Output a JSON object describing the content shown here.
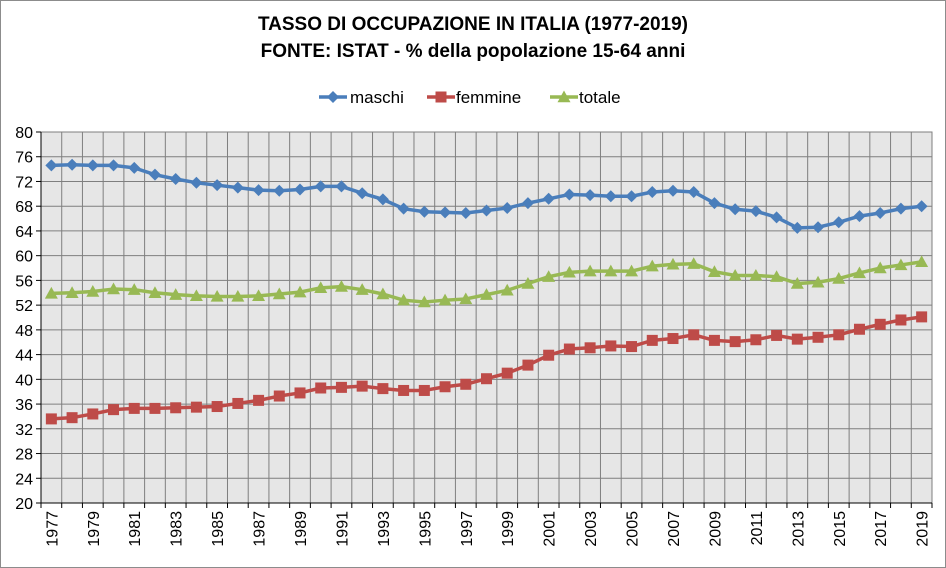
{
  "chart_data": {
    "type": "line",
    "title": "TASSO DI OCCUPAZIONE IN ITALIA (1977-2019)",
    "subtitle": "FONTE: ISTAT - % della popolazione 15-64 anni",
    "xlabel": "",
    "ylabel": "",
    "ylim": [
      20,
      80
    ],
    "yticks": [
      20,
      24,
      28,
      32,
      36,
      40,
      44,
      48,
      52,
      56,
      60,
      64,
      68,
      72,
      76,
      80
    ],
    "x": [
      1977,
      1978,
      1979,
      1980,
      1981,
      1982,
      1983,
      1984,
      1985,
      1986,
      1987,
      1988,
      1989,
      1990,
      1991,
      1992,
      1993,
      1994,
      1995,
      1996,
      1997,
      1998,
      1999,
      2000,
      2001,
      2002,
      2003,
      2004,
      2005,
      2006,
      2007,
      2008,
      2009,
      2010,
      2011,
      2012,
      2013,
      2014,
      2015,
      2016,
      2017,
      2018,
      2019
    ],
    "xtick_labels": [
      "1977",
      "1979",
      "1981",
      "1983",
      "1985",
      "1987",
      "1989",
      "1991",
      "1993",
      "1995",
      "1997",
      "1999",
      "2001",
      "2003",
      "2005",
      "2007",
      "2009",
      "2011",
      "2013",
      "2015",
      "2017",
      "2019"
    ],
    "grid": true,
    "legend": "top-center",
    "colors": {
      "plot_background": "#e6e6e6",
      "grid": "#7f7f7f",
      "maschi": "#4a7ebb",
      "femmine": "#be4b48",
      "totale": "#98b954"
    },
    "series": [
      {
        "name": "maschi",
        "marker": "diamond",
        "values": [
          74.6,
          74.7,
          74.6,
          74.6,
          74.2,
          73.1,
          72.4,
          71.8,
          71.4,
          71.0,
          70.6,
          70.5,
          70.7,
          71.2,
          71.2,
          70.1,
          69.1,
          67.6,
          67.1,
          67.0,
          66.9,
          67.3,
          67.7,
          68.5,
          69.2,
          69.9,
          69.8,
          69.6,
          69.6,
          70.3,
          70.5,
          70.3,
          68.5,
          67.5,
          67.2,
          66.2,
          64.5,
          64.6,
          65.4,
          66.4,
          66.9,
          67.6,
          68.0
        ]
      },
      {
        "name": "femmine",
        "marker": "square",
        "values": [
          33.6,
          33.8,
          34.4,
          35.1,
          35.3,
          35.3,
          35.4,
          35.5,
          35.6,
          36.1,
          36.6,
          37.3,
          37.8,
          38.6,
          38.7,
          38.9,
          38.5,
          38.2,
          38.2,
          38.8,
          39.2,
          40.1,
          41.0,
          42.3,
          43.9,
          44.9,
          45.1,
          45.4,
          45.3,
          46.3,
          46.6,
          47.2,
          46.3,
          46.1,
          46.4,
          47.1,
          46.5,
          46.8,
          47.2,
          48.1,
          48.9,
          49.6,
          50.1
        ]
      },
      {
        "name": "totale",
        "marker": "triangle",
        "values": [
          53.9,
          54.0,
          54.2,
          54.6,
          54.5,
          54.0,
          53.7,
          53.5,
          53.4,
          53.4,
          53.5,
          53.8,
          54.1,
          54.8,
          55.0,
          54.5,
          53.8,
          52.8,
          52.5,
          52.8,
          53.0,
          53.7,
          54.4,
          55.5,
          56.6,
          57.3,
          57.5,
          57.5,
          57.5,
          58.3,
          58.6,
          58.7,
          57.4,
          56.8,
          56.8,
          56.6,
          55.5,
          55.7,
          56.3,
          57.2,
          58.0,
          58.5,
          59.0
        ]
      }
    ]
  }
}
